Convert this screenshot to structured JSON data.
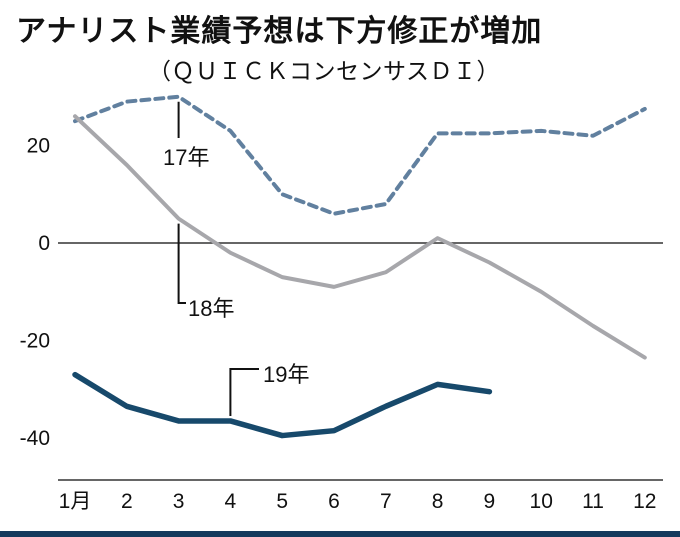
{
  "title": "アナリスト業績予想は下方修正が増加",
  "subtitle": "（ＱＵＩＣＫコンセンサスＤＩ）",
  "colors": {
    "background": "#ffffff",
    "text": "#111111",
    "axis": "#333333",
    "series_17": "#61809f",
    "series_18": "#a7a7ab",
    "series_19": "#17496b",
    "bottom_bar": "#14395c",
    "connector": "#111111"
  },
  "chart_data": {
    "type": "line",
    "title": "アナリスト業績予想は下方修正が増加",
    "subtitle": "（ＱＵＩＣＫコンセンサスＤＩ）",
    "xlabel": "",
    "ylabel": "",
    "x": [
      1,
      2,
      3,
      4,
      5,
      6,
      7,
      8,
      9,
      10,
      11,
      12
    ],
    "x_tick_labels": [
      "1月",
      "2",
      "3",
      "4",
      "5",
      "6",
      "7",
      "8",
      "9",
      "10",
      "11",
      "12"
    ],
    "y_ticks": [
      20,
      0,
      -20,
      -40
    ],
    "ylim": [
      -48,
      34
    ],
    "grid": false,
    "zero_line": true,
    "legend_position": "inline-annotations",
    "series": [
      {
        "name": "17年",
        "style": "dashed",
        "color": "#61809f",
        "width": 4,
        "dash": "8,6",
        "values": [
          25,
          29,
          30,
          23,
          10,
          6,
          8,
          22.5,
          22.5,
          23,
          22,
          27.5
        ]
      },
      {
        "name": "18年",
        "style": "solid",
        "color": "#a7a7ab",
        "width": 4,
        "dash": "",
        "values": [
          26,
          16,
          5,
          -2,
          -7,
          -9,
          -6,
          1,
          -4,
          -10,
          -17,
          -23.5
        ]
      },
      {
        "name": "19年",
        "style": "solid",
        "color": "#17496b",
        "width": 5.5,
        "dash": "",
        "values": [
          -27,
          -33.5,
          -36.5,
          -36.5,
          -39.5,
          -38.5,
          -33.5,
          -29,
          -30.5
        ]
      }
    ],
    "annotations": [
      {
        "label": "17年",
        "points_to_series": "17年",
        "month": 3
      },
      {
        "label": "18年",
        "points_to_series": "18年",
        "month": 3
      },
      {
        "label": "19年",
        "points_to_series": "19年",
        "month": 4
      }
    ]
  }
}
